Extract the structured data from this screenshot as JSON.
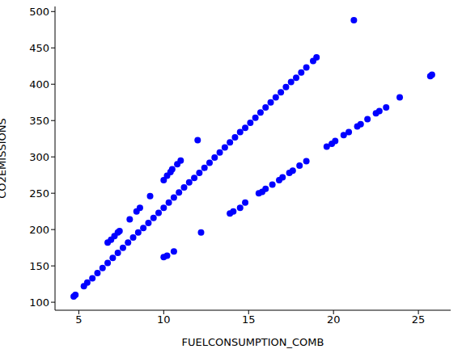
{
  "chart_data": {
    "type": "scatter",
    "xlabel": "FUELCONSUMPTION_COMB",
    "ylabel": "CO2EMISSIONS",
    "color": "blue",
    "marker": "circle",
    "grid": false,
    "xlim": [
      3.6,
      26.9
    ],
    "ylim": [
      89,
      507
    ],
    "xticks": [
      5,
      10,
      15,
      20,
      25
    ],
    "yticks": [
      100,
      150,
      200,
      250,
      300,
      350,
      400,
      450,
      500
    ],
    "x": [
      4.7,
      4.8,
      5.3,
      5.5,
      5.8,
      6.1,
      6.4,
      6.7,
      7.0,
      7.3,
      7.6,
      7.9,
      8.2,
      8.5,
      8.8,
      9.1,
      9.4,
      9.7,
      10.0,
      10.3,
      10.6,
      10.9,
      11.2,
      11.5,
      11.8,
      12.1,
      12.4,
      12.7,
      13.0,
      13.3,
      13.6,
      13.9,
      14.2,
      14.5,
      14.8,
      15.1,
      15.4,
      15.7,
      16.0,
      16.3,
      16.6,
      16.9,
      17.2,
      17.5,
      17.8,
      18.1,
      18.4,
      18.8,
      19.0,
      6.7,
      6.9,
      7.1,
      7.3,
      7.4,
      8.0,
      8.4,
      8.6,
      9.2,
      10.0,
      10.2,
      10.4,
      10.5,
      10.8,
      11.0,
      10.0,
      10.2,
      10.6,
      13.9,
      14.1,
      14.5,
      14.8,
      15.6,
      15.8,
      16.0,
      16.4,
      16.8,
      17.0,
      17.4,
      17.6,
      18.0,
      18.4,
      19.6,
      19.9,
      20.1,
      20.6,
      20.9,
      21.4,
      21.6,
      22.0,
      22.5,
      22.7,
      23.1,
      23.9,
      25.7,
      25.8,
      12.0,
      12.2,
      21.2
    ],
    "values": [
      108,
      110,
      122,
      127,
      133,
      140,
      147,
      154,
      161,
      168,
      175,
      182,
      189,
      196,
      202,
      209,
      216,
      223,
      230,
      237,
      244,
      251,
      258,
      265,
      271,
      278,
      285,
      292,
      299,
      306,
      313,
      320,
      327,
      334,
      340,
      347,
      354,
      361,
      368,
      375,
      382,
      389,
      396,
      403,
      409,
      416,
      423,
      432,
      437,
      182,
      186,
      191,
      196,
      198,
      214,
      225,
      230,
      246,
      268,
      274,
      279,
      283,
      290,
      295,
      162,
      164,
      170,
      222,
      225,
      230,
      237,
      250,
      252,
      256,
      262,
      268,
      272,
      278,
      281,
      288,
      294,
      314,
      318,
      322,
      330,
      334,
      342,
      345,
      352,
      360,
      363,
      368,
      382,
      411,
      413,
      323,
      196,
      488
    ]
  }
}
